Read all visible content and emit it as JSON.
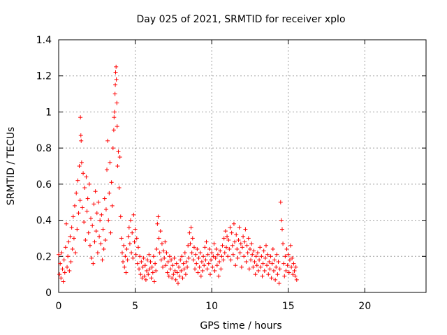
{
  "chart_data": {
    "type": "scatter",
    "title": "Day 025 of 2021, SRMTID for receiver xplo",
    "xlabel": "GPS time / hours",
    "ylabel": "SRMTID / TECUs",
    "xlim": [
      0,
      24
    ],
    "ylim": [
      0,
      1.4
    ],
    "x_ticks": [
      0,
      5,
      10,
      15,
      20
    ],
    "x_tick_labels": [
      "0",
      "5",
      "10",
      "15",
      "20"
    ],
    "y_ticks": [
      0,
      0.2,
      0.4,
      0.6,
      0.8,
      1.0,
      1.2,
      1.4
    ],
    "y_tick_labels": [
      "0",
      "0.2",
      "0.4",
      "0.6",
      "0.8",
      "1",
      "1.2",
      "1.4"
    ],
    "grid": true,
    "marker": "+",
    "color": "#ff0000",
    "series": [
      {
        "name": "SRMTID",
        "points": [
          [
            0.0,
            0.21
          ],
          [
            0.05,
            0.1
          ],
          [
            0.1,
            0.16
          ],
          [
            0.15,
            0.08
          ],
          [
            0.2,
            0.22
          ],
          [
            0.25,
            0.13
          ],
          [
            0.3,
            0.06
          ],
          [
            0.35,
            0.18
          ],
          [
            0.4,
            0.11
          ],
          [
            0.45,
            0.25
          ],
          [
            0.5,
            0.38
          ],
          [
            0.55,
            0.14
          ],
          [
            0.6,
            0.2
          ],
          [
            0.65,
            0.28
          ],
          [
            0.7,
            0.12
          ],
          [
            0.75,
            0.31
          ],
          [
            0.8,
            0.17
          ],
          [
            0.85,
            0.36
          ],
          [
            0.9,
            0.24
          ],
          [
            0.95,
            0.42
          ],
          [
            1.0,
            0.3
          ],
          [
            1.05,
            0.48
          ],
          [
            1.1,
            0.22
          ],
          [
            1.15,
            0.55
          ],
          [
            1.2,
            0.35
          ],
          [
            1.25,
            0.62
          ],
          [
            1.3,
            0.44
          ],
          [
            1.35,
            0.7
          ],
          [
            1.4,
            0.51
          ],
          [
            1.42,
            0.97
          ],
          [
            1.45,
            0.87
          ],
          [
            1.47,
            0.84
          ],
          [
            1.5,
            0.72
          ],
          [
            1.55,
            0.47
          ],
          [
            1.6,
            0.66
          ],
          [
            1.65,
            0.39
          ],
          [
            1.7,
            0.58
          ],
          [
            1.75,
            0.29
          ],
          [
            1.8,
            0.64
          ],
          [
            1.85,
            0.45
          ],
          [
            1.9,
            0.52
          ],
          [
            1.95,
            0.33
          ],
          [
            2.0,
            0.6
          ],
          [
            2.05,
            0.26
          ],
          [
            2.1,
            0.41
          ],
          [
            2.15,
            0.19
          ],
          [
            2.2,
            0.37
          ],
          [
            2.25,
            0.16
          ],
          [
            2.3,
            0.49
          ],
          [
            2.35,
            0.28
          ],
          [
            2.4,
            0.56
          ],
          [
            2.45,
            0.34
          ],
          [
            2.5,
            0.44
          ],
          [
            2.55,
            0.22
          ],
          [
            2.6,
            0.5
          ],
          [
            2.65,
            0.31
          ],
          [
            2.7,
            0.4
          ],
          [
            2.75,
            0.27
          ],
          [
            2.8,
            0.43
          ],
          [
            2.85,
            0.18
          ],
          [
            2.9,
            0.35
          ],
          [
            2.95,
            0.24
          ],
          [
            3.0,
            0.52
          ],
          [
            3.05,
            0.29
          ],
          [
            3.1,
            0.46
          ],
          [
            3.15,
            0.68
          ],
          [
            3.2,
            0.84
          ],
          [
            3.25,
            0.4
          ],
          [
            3.3,
            0.55
          ],
          [
            3.35,
            0.72
          ],
          [
            3.4,
            0.33
          ],
          [
            3.45,
            0.61
          ],
          [
            3.5,
            0.48
          ],
          [
            3.55,
            0.8
          ],
          [
            3.6,
            0.9
          ],
          [
            3.62,
            0.97
          ],
          [
            3.65,
            1.0
          ],
          [
            3.68,
            1.1
          ],
          [
            3.7,
            1.15
          ],
          [
            3.72,
            1.22
          ],
          [
            3.75,
            1.25
          ],
          [
            3.77,
            1.18
          ],
          [
            3.8,
            1.05
          ],
          [
            3.82,
            0.92
          ],
          [
            3.85,
            0.7
          ],
          [
            3.9,
            0.78
          ],
          [
            3.95,
            0.58
          ],
          [
            4.0,
            0.75
          ],
          [
            4.05,
            0.42
          ],
          [
            4.1,
            0.3
          ],
          [
            4.15,
            0.22
          ],
          [
            4.2,
            0.17
          ],
          [
            4.25,
            0.26
          ],
          [
            4.3,
            0.14
          ],
          [
            4.35,
            0.2
          ],
          [
            4.4,
            0.11
          ],
          [
            4.45,
            0.24
          ],
          [
            4.5,
            0.18
          ],
          [
            4.55,
            0.31
          ],
          [
            4.6,
            0.36
          ],
          [
            4.65,
            0.27
          ],
          [
            4.7,
            0.4
          ],
          [
            4.75,
            0.22
          ],
          [
            4.8,
            0.33
          ],
          [
            4.85,
            0.19
          ],
          [
            4.9,
            0.43
          ],
          [
            4.95,
            0.28
          ],
          [
            5.0,
            0.35
          ],
          [
            5.05,
            0.21
          ],
          [
            5.1,
            0.3
          ],
          [
            5.15,
            0.16
          ],
          [
            5.2,
            0.25
          ],
          [
            5.25,
            0.13
          ],
          [
            5.3,
            0.2
          ],
          [
            5.35,
            0.1
          ],
          [
            5.4,
            0.17
          ],
          [
            5.45,
            0.08
          ],
          [
            5.5,
            0.14
          ],
          [
            5.55,
            0.19
          ],
          [
            5.6,
            0.09
          ],
          [
            5.65,
            0.15
          ],
          [
            5.7,
            0.07
          ],
          [
            5.75,
            0.12
          ],
          [
            5.8,
            0.18
          ],
          [
            5.85,
            0.1
          ],
          [
            5.9,
            0.21
          ],
          [
            5.95,
            0.13
          ],
          [
            6.0,
            0.17
          ],
          [
            6.05,
            0.08
          ],
          [
            6.1,
            0.14
          ],
          [
            6.15,
            0.11
          ],
          [
            6.2,
            0.2
          ],
          [
            6.25,
            0.06
          ],
          [
            6.3,
            0.16
          ],
          [
            6.35,
            0.12
          ],
          [
            6.4,
            0.24
          ],
          [
            6.45,
            0.38
          ],
          [
            6.5,
            0.42
          ],
          [
            6.55,
            0.3
          ],
          [
            6.6,
            0.22
          ],
          [
            6.65,
            0.34
          ],
          [
            6.7,
            0.18
          ],
          [
            6.75,
            0.27
          ],
          [
            6.8,
            0.14
          ],
          [
            6.85,
            0.23
          ],
          [
            6.9,
            0.19
          ],
          [
            6.95,
            0.28
          ],
          [
            7.0,
            0.15
          ],
          [
            7.05,
            0.22
          ],
          [
            7.1,
            0.11
          ],
          [
            7.15,
            0.17
          ],
          [
            7.2,
            0.09
          ],
          [
            7.25,
            0.2
          ],
          [
            7.3,
            0.13
          ],
          [
            7.35,
            0.18
          ],
          [
            7.4,
            0.08
          ],
          [
            7.45,
            0.15
          ],
          [
            7.5,
            0.1
          ],
          [
            7.55,
            0.19
          ],
          [
            7.6,
            0.12
          ],
          [
            7.65,
            0.07
          ],
          [
            7.7,
            0.16
          ],
          [
            7.75,
            0.11
          ],
          [
            7.8,
            0.05
          ],
          [
            7.85,
            0.14
          ],
          [
            7.9,
            0.09
          ],
          [
            7.95,
            0.18
          ],
          [
            8.0,
            0.12
          ],
          [
            8.05,
            0.2
          ],
          [
            8.1,
            0.08
          ],
          [
            8.15,
            0.16
          ],
          [
            8.2,
            0.13
          ],
          [
            8.25,
            0.22
          ],
          [
            8.3,
            0.1
          ],
          [
            8.35,
            0.17
          ],
          [
            8.4,
            0.14
          ],
          [
            8.45,
            0.26
          ],
          [
            8.5,
            0.19
          ],
          [
            8.55,
            0.33
          ],
          [
            8.6,
            0.27
          ],
          [
            8.65,
            0.36
          ],
          [
            8.7,
            0.22
          ],
          [
            8.75,
            0.3
          ],
          [
            8.8,
            0.18
          ],
          [
            8.85,
            0.25
          ],
          [
            8.9,
            0.13
          ],
          [
            8.95,
            0.21
          ],
          [
            9.0,
            0.16
          ],
          [
            9.05,
            0.24
          ],
          [
            9.1,
            0.11
          ],
          [
            9.15,
            0.19
          ],
          [
            9.2,
            0.14
          ],
          [
            9.25,
            0.22
          ],
          [
            9.3,
            0.09
          ],
          [
            9.35,
            0.17
          ],
          [
            9.4,
            0.12
          ],
          [
            9.45,
            0.2
          ],
          [
            9.5,
            0.15
          ],
          [
            9.55,
            0.25
          ],
          [
            9.6,
            0.18
          ],
          [
            9.65,
            0.28
          ],
          [
            9.7,
            0.13
          ],
          [
            9.75,
            0.21
          ],
          [
            9.8,
            0.16
          ],
          [
            9.85,
            0.24
          ],
          [
            9.9,
            0.1
          ],
          [
            9.95,
            0.18
          ],
          [
            10.0,
            0.22
          ],
          [
            10.05,
            0.14
          ],
          [
            10.1,
            0.2
          ],
          [
            10.15,
            0.27
          ],
          [
            10.2,
            0.12
          ],
          [
            10.25,
            0.19
          ],
          [
            10.3,
            0.24
          ],
          [
            10.35,
            0.15
          ],
          [
            10.4,
            0.21
          ],
          [
            10.45,
            0.09
          ],
          [
            10.5,
            0.17
          ],
          [
            10.55,
            0.23
          ],
          [
            10.6,
            0.13
          ],
          [
            10.65,
            0.2
          ],
          [
            10.7,
            0.26
          ],
          [
            10.75,
            0.18
          ],
          [
            10.8,
            0.3
          ],
          [
            10.85,
            0.22
          ],
          [
            10.9,
            0.34
          ],
          [
            10.95,
            0.25
          ],
          [
            11.0,
            0.31
          ],
          [
            11.05,
            0.2
          ],
          [
            11.1,
            0.29
          ],
          [
            11.15,
            0.24
          ],
          [
            11.2,
            0.36
          ],
          [
            11.25,
            0.18
          ],
          [
            11.3,
            0.33
          ],
          [
            11.35,
            0.26
          ],
          [
            11.4,
            0.21
          ],
          [
            11.45,
            0.38
          ],
          [
            11.5,
            0.28
          ],
          [
            11.55,
            0.15
          ],
          [
            11.6,
            0.32
          ],
          [
            11.65,
            0.24
          ],
          [
            11.7,
            0.19
          ],
          [
            11.75,
            0.29
          ],
          [
            11.8,
            0.36
          ],
          [
            11.85,
            0.22
          ],
          [
            11.9,
            0.27
          ],
          [
            11.95,
            0.14
          ],
          [
            12.0,
            0.25
          ],
          [
            12.05,
            0.31
          ],
          [
            12.1,
            0.2
          ],
          [
            12.15,
            0.28
          ],
          [
            12.2,
            0.35
          ],
          [
            12.25,
            0.17
          ],
          [
            12.3,
            0.26
          ],
          [
            12.35,
            0.22
          ],
          [
            12.4,
            0.3
          ],
          [
            12.45,
            0.13
          ],
          [
            12.5,
            0.24
          ],
          [
            12.55,
            0.18
          ],
          [
            12.6,
            0.27
          ],
          [
            12.65,
            0.21
          ],
          [
            12.7,
            0.14
          ],
          [
            12.75,
            0.23
          ],
          [
            12.8,
            0.17
          ],
          [
            12.85,
            0.1
          ],
          [
            12.9,
            0.2
          ],
          [
            12.95,
            0.15
          ],
          [
            13.0,
            0.22
          ],
          [
            13.05,
            0.12
          ],
          [
            13.1,
            0.18
          ],
          [
            13.15,
            0.25
          ],
          [
            13.2,
            0.14
          ],
          [
            13.25,
            0.2
          ],
          [
            13.3,
            0.09
          ],
          [
            13.35,
            0.16
          ],
          [
            13.4,
            0.23
          ],
          [
            13.45,
            0.12
          ],
          [
            13.5,
            0.19
          ],
          [
            13.55,
            0.26
          ],
          [
            13.6,
            0.15
          ],
          [
            13.65,
            0.21
          ],
          [
            13.7,
            0.1
          ],
          [
            13.75,
            0.17
          ],
          [
            13.8,
            0.13
          ],
          [
            13.85,
            0.2
          ],
          [
            13.9,
            0.08
          ],
          [
            13.95,
            0.16
          ],
          [
            14.0,
            0.24
          ],
          [
            14.05,
            0.12
          ],
          [
            14.1,
            0.18
          ],
          [
            14.15,
            0.07
          ],
          [
            14.2,
            0.14
          ],
          [
            14.25,
            0.21
          ],
          [
            14.3,
            0.1
          ],
          [
            14.35,
            0.17
          ],
          [
            14.4,
            0.05
          ],
          [
            14.45,
            0.13
          ],
          [
            14.5,
            0.5
          ],
          [
            14.55,
            0.4
          ],
          [
            14.6,
            0.35
          ],
          [
            14.65,
            0.27
          ],
          [
            14.7,
            0.16
          ],
          [
            14.75,
            0.09
          ],
          [
            14.8,
            0.2
          ],
          [
            14.85,
            0.12
          ],
          [
            14.9,
            0.24
          ],
          [
            14.95,
            0.15
          ],
          [
            15.0,
            0.21
          ],
          [
            15.05,
            0.11
          ],
          [
            15.1,
            0.18
          ],
          [
            15.15,
            0.26
          ],
          [
            15.2,
            0.14
          ],
          [
            15.25,
            0.19
          ],
          [
            15.3,
            0.1
          ],
          [
            15.35,
            0.16
          ],
          [
            15.4,
            0.12
          ],
          [
            15.45,
            0.09
          ],
          [
            15.5,
            0.14
          ],
          [
            15.55,
            0.07
          ]
        ]
      }
    ]
  }
}
